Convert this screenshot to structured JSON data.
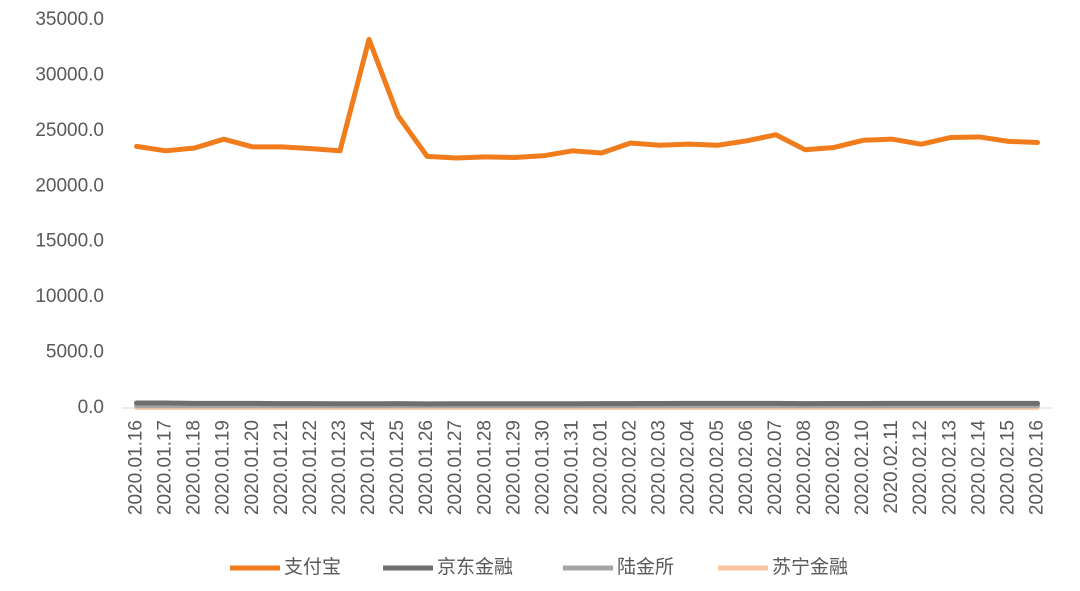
{
  "chart_data": {
    "type": "line",
    "categories": [
      "2020.01.16",
      "2020.01.17",
      "2020.01.18",
      "2020.01.19",
      "2020.01.20",
      "2020.01.21",
      "2020.01.22",
      "2020.01.23",
      "2020.01.24",
      "2020.01.25",
      "2020.01.26",
      "2020.01.27",
      "2020.01.28",
      "2020.01.29",
      "2020.01.30",
      "2020.01.31",
      "2020.02.01",
      "2020.02.02",
      "2020.02.03",
      "2020.02.04",
      "2020.02.05",
      "2020.02.06",
      "2020.02.07",
      "2020.02.08",
      "2020.02.09",
      "2020.02.10",
      "2020.02.11",
      "2020.02.12",
      "2020.02.13",
      "2020.02.14",
      "2020.02.15",
      "2020.02.16"
    ],
    "series": [
      {
        "name": "支付宝",
        "color": "#f07c1c",
        "values": [
          23600,
          23200,
          23450,
          24250,
          23550,
          23550,
          23400,
          23200,
          33250,
          26350,
          22700,
          22550,
          22650,
          22600,
          22750,
          23200,
          23000,
          23900,
          23700,
          23800,
          23700,
          24100,
          24650,
          23300,
          23500,
          24150,
          24250,
          23800,
          24400,
          24450,
          24050,
          23950
        ]
      },
      {
        "name": "京东金融",
        "color": "#6e6e6e",
        "values": [
          450,
          450,
          420,
          420,
          420,
          400,
          390,
          380,
          380,
          400,
          370,
          380,
          380,
          380,
          380,
          380,
          390,
          400,
          410,
          420,
          420,
          420,
          420,
          400,
          410,
          410,
          420,
          420,
          420,
          420,
          420,
          420
        ]
      },
      {
        "name": "陆金所",
        "color": "#a5a5a5",
        "values": [
          200,
          200,
          200,
          200,
          200,
          200,
          200,
          200,
          200,
          200,
          200,
          200,
          200,
          200,
          200,
          200,
          200,
          200,
          200,
          200,
          200,
          200,
          200,
          200,
          200,
          200,
          200,
          200,
          200,
          200,
          200,
          200
        ]
      },
      {
        "name": "苏宁金融",
        "color": "#f8c6a0",
        "values": [
          60,
          60,
          60,
          60,
          60,
          60,
          60,
          60,
          60,
          60,
          60,
          60,
          60,
          60,
          60,
          60,
          60,
          60,
          60,
          60,
          60,
          60,
          60,
          60,
          60,
          60,
          60,
          60,
          60,
          60,
          60,
          60
        ]
      }
    ],
    "ylim": [
      0,
      35000
    ],
    "yticks": [
      {
        "value": 0,
        "label": "0.0"
      },
      {
        "value": 5000,
        "label": "5000.0"
      },
      {
        "value": 10000,
        "label": "10000.0"
      },
      {
        "value": 15000,
        "label": "15000.0"
      },
      {
        "value": 20000,
        "label": "20000.0"
      },
      {
        "value": 25000,
        "label": "25000.0"
      },
      {
        "value": 30000,
        "label": "30000.0"
      },
      {
        "value": 35000,
        "label": "35000.0"
      }
    ],
    "grid": false
  }
}
